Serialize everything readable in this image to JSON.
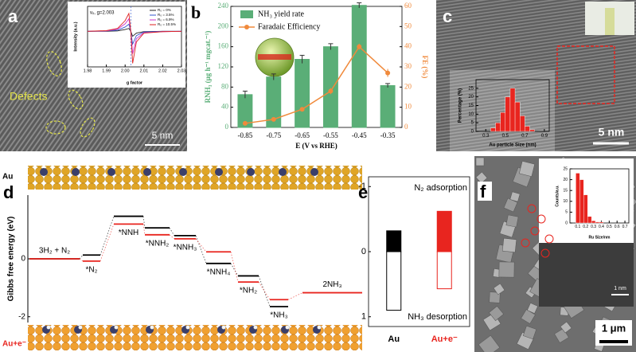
{
  "figure": {
    "a": {
      "label": "a",
      "annotation": "Defects",
      "scale_bar": "5 nm"
    },
    "b": {
      "label": "b"
    },
    "c": {
      "label": "c",
      "scale_bar": "5 nm"
    },
    "d": {
      "label": "d"
    },
    "e": {
      "label": "e"
    },
    "f": {
      "label": "f",
      "scale_bar": "1 μm",
      "inset_scale_bar": "1 nm"
    }
  },
  "chart_data": [
    {
      "type": "bar",
      "categories": [
        "-0.85",
        "-0.75",
        "-0.65",
        "-0.55",
        "-0.45",
        "-0.35"
      ],
      "xlabel": "E (V vs RHE)",
      "ylabel": "RNH₃ (μg h⁻¹ mgcat.⁻¹)",
      "y2label": "FE (%)",
      "series": [
        {
          "name": "NH₃ yield rate",
          "color": "#5aae77",
          "values": [
            65,
            100,
            135,
            160,
            242,
            83
          ],
          "errors": [
            7,
            6,
            8,
            6,
            5,
            4
          ]
        },
        {
          "name": "Faradaic Efficiency",
          "color": "#f08a3c",
          "type": "line",
          "axis": "y2",
          "values": [
            2,
            4,
            9,
            18,
            40,
            27
          ],
          "errors": [
            0.8,
            0.8,
            1,
            1.5,
            1.5,
            2
          ]
        }
      ],
      "ylim": [
        0,
        240
      ],
      "yticks": [
        0,
        40,
        80,
        120,
        160,
        200,
        240
      ],
      "y2lim": [
        0,
        60
      ],
      "y2ticks": [
        0,
        10,
        20,
        30,
        40,
        50,
        60
      ]
    },
    {
      "type": "energy",
      "ylabel": "Gibbs free energy (eV)",
      "categories": [
        "3H₂ + N₂",
        "*N₂",
        "*NNH",
        "*NNH₂",
        "*NNH₃",
        "*NNH₄",
        "*NH₂",
        "*NH₃",
        "2NH₃"
      ],
      "series": [
        {
          "name": "Au",
          "color": "#000000",
          "values": [
            0,
            0.13,
            1.47,
            1.07,
            0.8,
            -0.16,
            -0.59,
            -1.65,
            null
          ]
        },
        {
          "name": "Au+e⁻",
          "color": "#e8251f",
          "values": [
            0,
            -0.08,
            1.2,
            0.83,
            0.69,
            0.24,
            -0.8,
            -1.41,
            -1.17
          ]
        }
      ],
      "ylim": [
        -2.2,
        2.2
      ],
      "yticks": [
        0,
        -2
      ]
    },
    {
      "type": "bar",
      "categories": [
        "Au",
        "Au+e⁻"
      ],
      "colors": [
        "#000000",
        "#e8251f"
      ],
      "inverted": true,
      "series": [
        {
          "name": "N₂ adsorption",
          "style": "filled",
          "values": [
            -0.32,
            -0.62
          ]
        },
        {
          "name": "NH₃ desorption",
          "style": "hollow",
          "values": [
            0.9,
            0.57
          ]
        }
      ],
      "ylim": [
        -1.15,
        1.15
      ],
      "yticks": [
        -1,
        0,
        1
      ]
    },
    {
      "type": "line",
      "xlabel": "g factor",
      "ylabel": "Intensity (a.u.)",
      "annotation": "vₒ, g=2.003",
      "vline": 2.003,
      "x": [
        1.98,
        1.99,
        1.996,
        2.0,
        2.002,
        2.003,
        2.004,
        2.006,
        2.01,
        2.02,
        2.03
      ],
      "series": [
        {
          "name": "R₀ = 0%",
          "color": "#222222",
          "values": [
            0,
            0,
            0.01,
            0.05,
            0.08,
            0,
            -0.14,
            -0.05,
            -0.01,
            0,
            0
          ]
        },
        {
          "name": "R₀ = 3.5%",
          "color": "#3355cc",
          "values": [
            0,
            0.01,
            0.03,
            0.12,
            0.2,
            0,
            -0.36,
            -0.12,
            -0.02,
            0,
            0
          ]
        },
        {
          "name": "R₀ = 6.9%",
          "color": "#cc33cc",
          "values": [
            0,
            0.01,
            0.06,
            0.21,
            0.35,
            0,
            -0.63,
            -0.21,
            -0.04,
            -0.01,
            0
          ]
        },
        {
          "name": "R₀ = 10.5%",
          "color": "#dd2222",
          "values": [
            0,
            0.02,
            0.08,
            0.3,
            0.5,
            0,
            -0.9,
            -0.3,
            -0.05,
            -0.01,
            0
          ]
        }
      ],
      "xlim": [
        1.98,
        2.03
      ],
      "xticks": [
        1.98,
        1.99,
        {
          "value": 2,
          "label": "2.00"
        },
        2.01,
        2.02,
        2.03
      ],
      "ylim": [
        -1,
        0.7
      ],
      "yticks": []
    },
    {
      "type": "histogram",
      "xlabel": "Au particle Size (nm)",
      "ylabel": "Percentage (%)",
      "color": "#e8251f",
      "bins": [
        0.35,
        0.4,
        0.45,
        0.5,
        0.55,
        0.6,
        0.65,
        0.7,
        0.75,
        0.8
      ],
      "counts": [
        2,
        5,
        11,
        20,
        25,
        17,
        9,
        3,
        1
      ],
      "xlim": [
        0.2,
        0.95
      ],
      "xticks": [
        0.3,
        0.5,
        0.7,
        0.9
      ],
      "ylim": [
        0,
        30
      ],
      "yticks": [
        0,
        5,
        10,
        15,
        20,
        25
      ]
    },
    {
      "type": "histogram",
      "xlabel": "Ru Size/nm",
      "ylabel": "Counts/a.u.",
      "color": "#e8251f",
      "bins": [
        0.075,
        0.125,
        0.175,
        0.225,
        0.275,
        0.325,
        0.375,
        0.425
      ],
      "counts": [
        23,
        20,
        13,
        3,
        1,
        0.5,
        0.5
      ],
      "xlim": [
        0,
        0.75
      ],
      "xticks": [
        0.1,
        0.2,
        0.3,
        0.4,
        0.5,
        0.6,
        0.7
      ],
      "ylim": [
        0,
        25
      ],
      "yticks": [
        0,
        5,
        10,
        15,
        20,
        25
      ]
    }
  ]
}
